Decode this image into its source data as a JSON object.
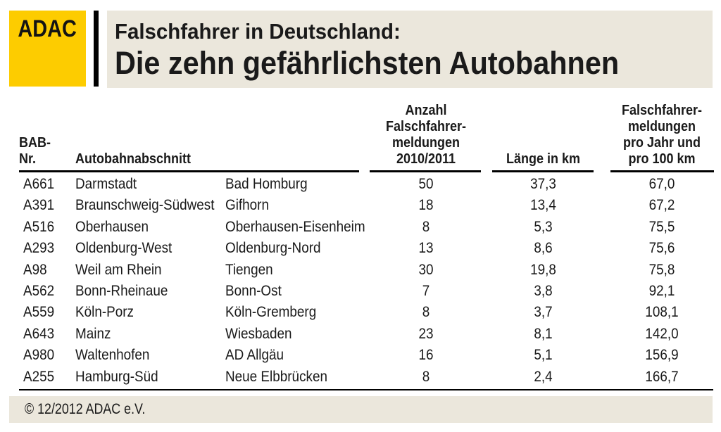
{
  "logo": {
    "text": "ADAC"
  },
  "header": {
    "title_line1": "Falschfahrer in Deutschland:",
    "title_line2": "Die zehn gefährlichsten Autobahnen"
  },
  "colors": {
    "adac_yellow": "#FDCC00",
    "panel_beige": "#EBE7DC",
    "text_black": "#1a1a1a"
  },
  "chart_data": {
    "type": "table",
    "title": "Falschfahrer in Deutschland: Die zehn gefährlichsten Autobahnen",
    "header": {
      "bab_line1": "BAB-",
      "bab_line2": "Nr.",
      "abschnitt": "Autobahnabschnitt",
      "anzahl_lines": [
        "Anzahl",
        "Falschfahrer-",
        "meldungen",
        "2010/2011"
      ],
      "laenge": "Länge in km",
      "rate_lines": [
        "Falschfahrer-",
        "meldungen",
        "pro Jahr und",
        "pro 100 km"
      ]
    },
    "rows": [
      {
        "bab": "A661",
        "from": "Darmstadt",
        "to": "Bad Homburg",
        "meldungen": "50",
        "laenge_km": "37,3",
        "pro_jahr_100km": "67,0"
      },
      {
        "bab": "A391",
        "from": "Braunschweig-Südwest",
        "to": "Gifhorn",
        "meldungen": "18",
        "laenge_km": "13,4",
        "pro_jahr_100km": "67,2"
      },
      {
        "bab": "A516",
        "from": "Oberhausen",
        "to": "Oberhausen-Eisenheim",
        "meldungen": "8",
        "laenge_km": "5,3",
        "pro_jahr_100km": "75,5"
      },
      {
        "bab": "A293",
        "from": "Oldenburg-West",
        "to": "Oldenburg-Nord",
        "meldungen": "13",
        "laenge_km": "8,6",
        "pro_jahr_100km": "75,6"
      },
      {
        "bab": "A98",
        "from": "Weil am Rhein",
        "to": "Tiengen",
        "meldungen": "30",
        "laenge_km": "19,8",
        "pro_jahr_100km": "75,8"
      },
      {
        "bab": "A562",
        "from": "Bonn-Rheinaue",
        "to": "Bonn-Ost",
        "meldungen": "7",
        "laenge_km": "3,8",
        "pro_jahr_100km": "92,1"
      },
      {
        "bab": "A559",
        "from": "Köln-Porz",
        "to": "Köln-Gremberg",
        "meldungen": "8",
        "laenge_km": "3,7",
        "pro_jahr_100km": "108,1"
      },
      {
        "bab": "A643",
        "from": "Mainz",
        "to": "Wiesbaden",
        "meldungen": "23",
        "laenge_km": "8,1",
        "pro_jahr_100km": "142,0"
      },
      {
        "bab": "A980",
        "from": "Waltenhofen",
        "to": "AD Allgäu",
        "meldungen": "16",
        "laenge_km": "5,1",
        "pro_jahr_100km": "156,9"
      },
      {
        "bab": "A255",
        "from": "Hamburg-Süd",
        "to": "Neue Elbbrücken",
        "meldungen": "8",
        "laenge_km": "2,4",
        "pro_jahr_100km": "166,7"
      }
    ]
  },
  "footer": {
    "copyright": "© 12/2012 ADAC e.V."
  }
}
